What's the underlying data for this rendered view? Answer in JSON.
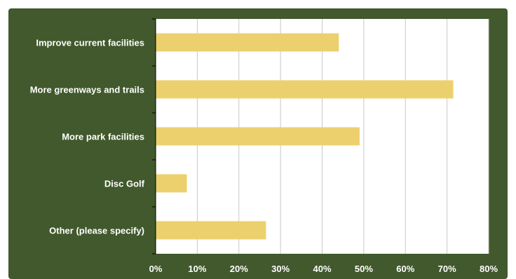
{
  "chart_data": {
    "type": "bar",
    "orientation": "horizontal",
    "categories": [
      "Improve current facilities",
      "More greenways and trails",
      "More park facilities",
      "Disc Golf",
      "Other (please specify)"
    ],
    "values": [
      44,
      71.5,
      49,
      7.5,
      26.5
    ],
    "unit": "%",
    "xlim": [
      0,
      80
    ],
    "ticks": [
      "0%",
      "10%",
      "20%",
      "30%",
      "40%",
      "50%",
      "60%",
      "70%",
      "80%"
    ],
    "grid": true,
    "legend": "none",
    "title": "",
    "xlabel": "",
    "ylabel": "",
    "colors": {
      "bar": "#edd06e",
      "background": "#41592c",
      "plot_area": "#ffffff",
      "gridline": "#c8c8c8",
      "axis": "#000000",
      "label_text": "#ffffff"
    }
  }
}
